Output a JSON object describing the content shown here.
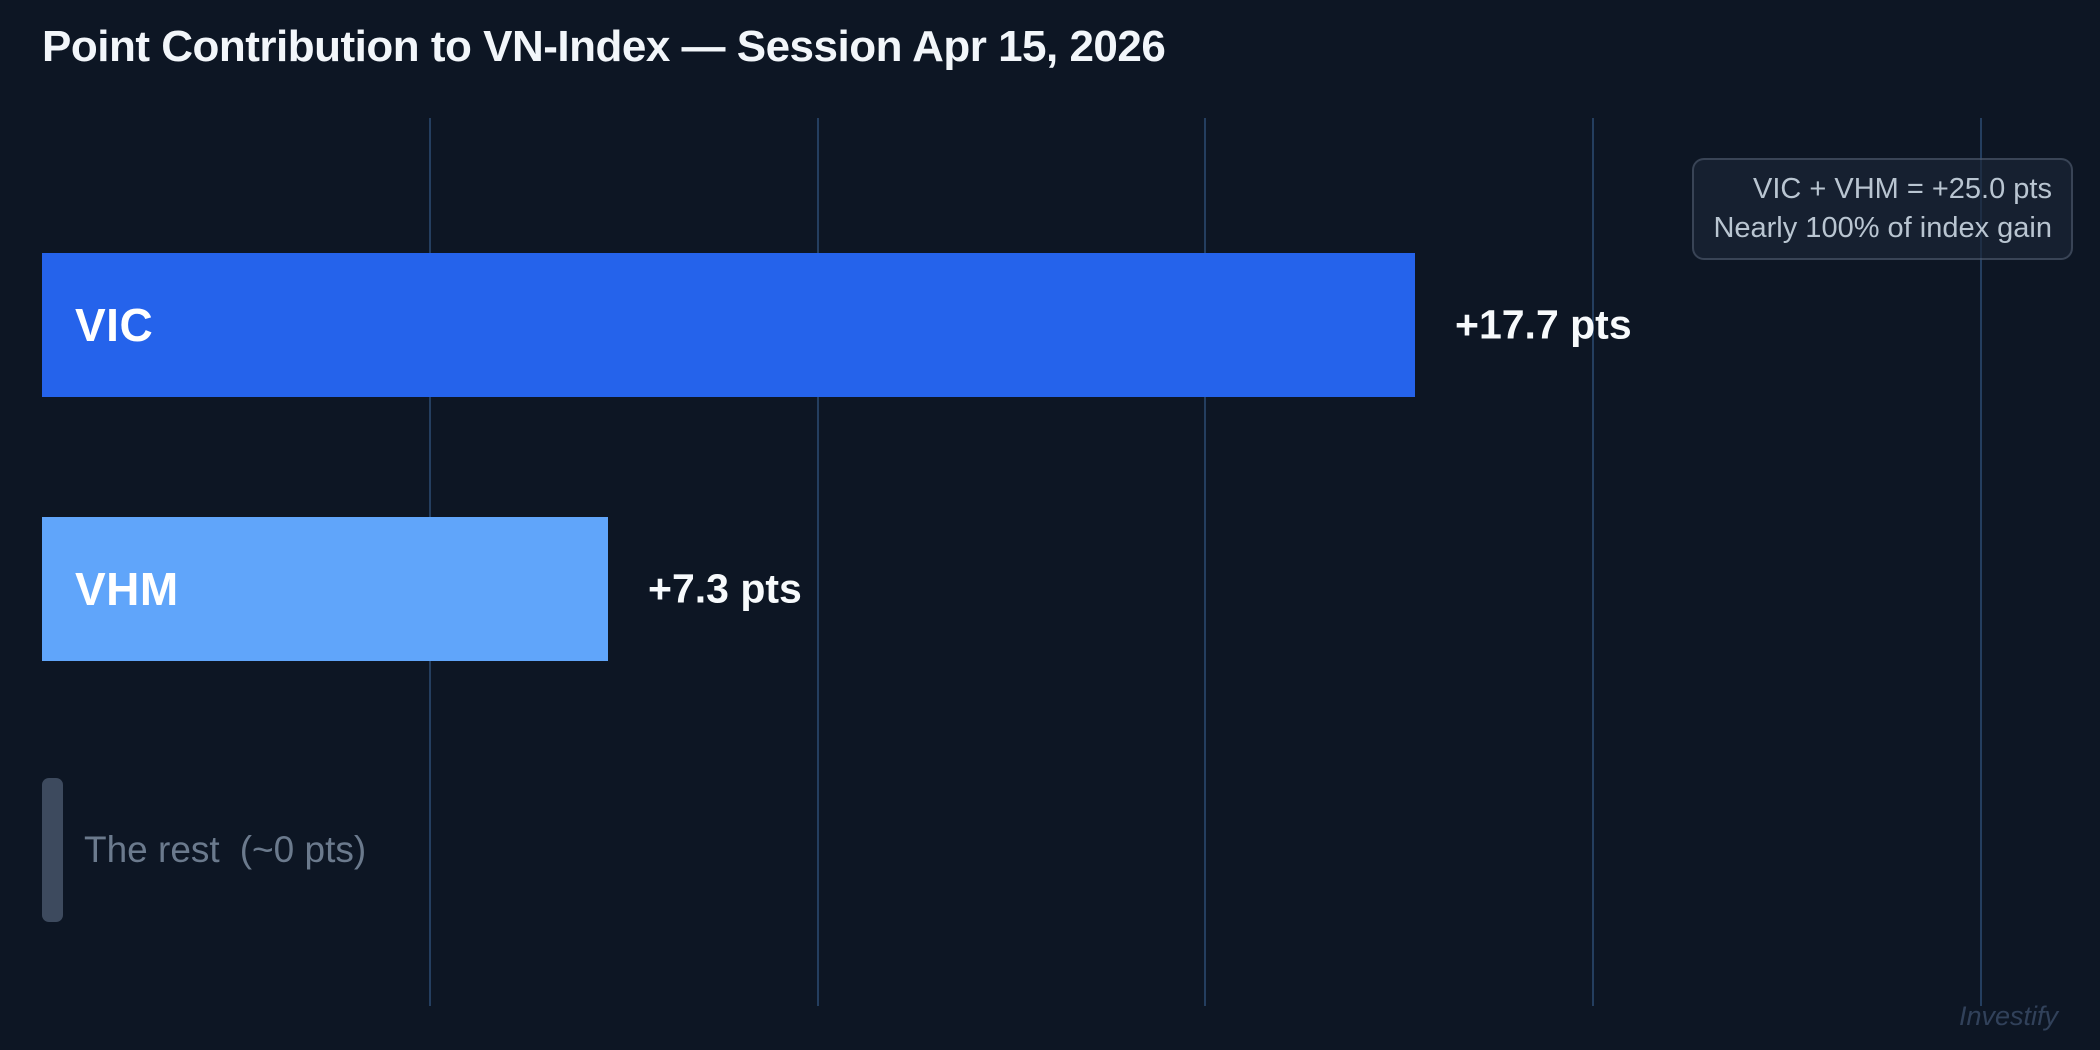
{
  "title": "Point Contribution to VN-Index — Session Apr 15, 2026",
  "chart_data": {
    "type": "bar",
    "orientation": "horizontal",
    "title": "Point Contribution to VN-Index — Session Apr 15, 2026",
    "categories": [
      "VIC",
      "VHM",
      "The rest"
    ],
    "values": [
      17.7,
      7.3,
      0
    ],
    "value_labels": [
      "+17.7 pts",
      "+7.3 pts",
      "(~0 pts)"
    ],
    "units": "pts",
    "xlabel": "",
    "ylabel": "",
    "xlim": [
      0,
      26.6
    ],
    "gridline_values": [
      5,
      10,
      15,
      20,
      25
    ],
    "grid": "vertical gridlines only, unlabeled ticks",
    "legend": "none",
    "bar_colors": [
      "#2563eb",
      "#60a5fa",
      "#3d4a5e"
    ],
    "annotation": "VIC + VHM = +25.0 pts — Nearly 100% of index gain"
  },
  "bars": [
    {
      "label": "VIC",
      "value_label": "+17.7 pts"
    },
    {
      "label": "VHM",
      "value_label": "+7.3 pts"
    },
    {
      "label": "The rest",
      "value_label": "(~0 pts)"
    }
  ],
  "annotation": {
    "line1": "VIC + VHM = +25.0 pts",
    "line2": "Nearly 100% of index gain"
  },
  "watermark": "Investify",
  "colors": {
    "background": "#0d1624",
    "vic_bar": "#2563eb",
    "vhm_bar": "#60a5fa",
    "rest_bar": "#3d4a5e",
    "gridline": "#2b4a73",
    "title_text": "#f2f6fa",
    "value_text": "#f7fafc",
    "muted_text": "#6b7a8d",
    "annotation_text": "#b9c5d1",
    "watermark_text": "#31415a"
  }
}
